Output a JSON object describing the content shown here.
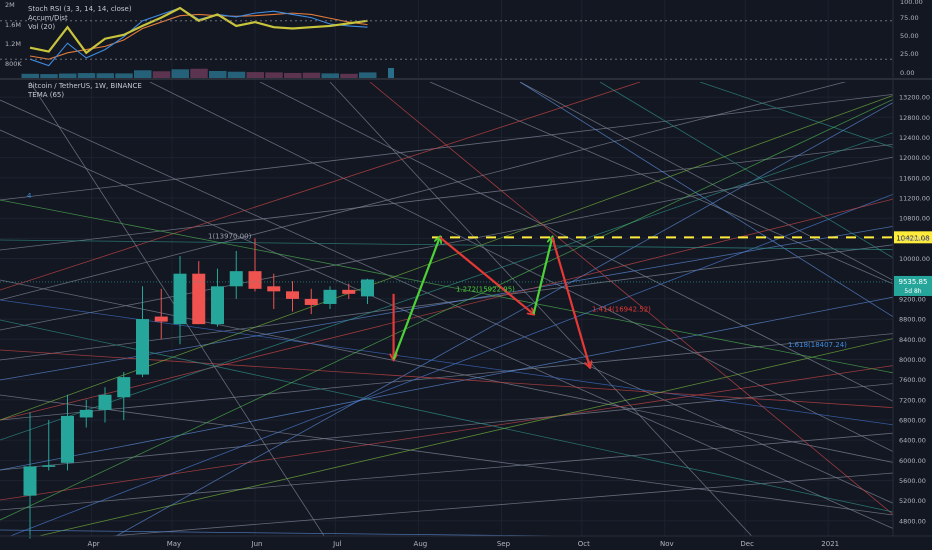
{
  "colors": {
    "background": "#131722",
    "bull": "#26a69a",
    "bear": "#ef5350",
    "target": "#ffeb3b",
    "arrow_up": "#4cd137",
    "arrow_down": "#e53935",
    "price_tag": "#26a69a"
  },
  "indicator_pane": {
    "studies": [
      "Stoch RSI (3, 3, 14, 14, close)",
      "Accum/Dist",
      "Vol (20)"
    ],
    "left_scale": [
      "2M",
      "1.6M",
      "1.2M",
      "800K"
    ],
    "right_scale": [
      "100.00",
      "75.00",
      "50.00",
      "25.00",
      "0.00"
    ]
  },
  "price_pane": {
    "symbol_title": "Bitcoin / TetherUS, 1W, BINANCE",
    "study": "TEMA (65)"
  },
  "chart_data": {
    "type": "candlestick",
    "x_labels": [
      "Apr",
      "May",
      "Jun",
      "Jul",
      "Aug",
      "Sep",
      "Oct",
      "Nov",
      "Dec",
      "2021"
    ],
    "y_ticks": [
      4800,
      5200,
      5600,
      6000,
      6400,
      6800,
      7200,
      7600,
      8000,
      8400,
      8800,
      9200,
      10000,
      10400,
      10800,
      11200,
      11600,
      12000,
      12400,
      12800,
      13200
    ],
    "ylim": [
      4500,
      13500
    ],
    "candles": [
      {
        "o": 5300,
        "h": 6950,
        "l": 4450,
        "c": 5880
      },
      {
        "o": 5880,
        "h": 6800,
        "l": 5800,
        "c": 5900
      },
      {
        "o": 5950,
        "h": 7300,
        "l": 5800,
        "c": 6880
      },
      {
        "o": 6850,
        "h": 7200,
        "l": 6650,
        "c": 7000
      },
      {
        "o": 7000,
        "h": 7450,
        "l": 6750,
        "c": 7300
      },
      {
        "o": 7250,
        "h": 7750,
        "l": 6800,
        "c": 7650
      },
      {
        "o": 7700,
        "h": 9450,
        "l": 7650,
        "c": 8800
      },
      {
        "o": 8850,
        "h": 9400,
        "l": 8400,
        "c": 8750
      },
      {
        "o": 8700,
        "h": 10050,
        "l": 8300,
        "c": 9700
      },
      {
        "o": 9700,
        "h": 9950,
        "l": 8700,
        "c": 8700
      },
      {
        "o": 8700,
        "h": 9800,
        "l": 8650,
        "c": 9450
      },
      {
        "o": 9450,
        "h": 10150,
        "l": 9200,
        "c": 9750
      },
      {
        "o": 9750,
        "h": 10400,
        "l": 9350,
        "c": 9400
      },
      {
        "o": 9450,
        "h": 9700,
        "l": 9000,
        "c": 9350
      },
      {
        "o": 9350,
        "h": 9550,
        "l": 8950,
        "c": 9200
      },
      {
        "o": 9200,
        "h": 9400,
        "l": 8900,
        "c": 9080
      },
      {
        "o": 9100,
        "h": 9450,
        "l": 9000,
        "c": 9380
      },
      {
        "o": 9380,
        "h": 9500,
        "l": 9200,
        "c": 9300
      },
      {
        "o": 9250,
        "h": 9600,
        "l": 9100,
        "c": 9585
      }
    ],
    "target_level": {
      "value": 10421.08,
      "label": "10421.08"
    },
    "current_price": {
      "value": 9535.85,
      "label": "9535.85",
      "countdown": "5d 8h"
    },
    "fib_labels": [
      {
        "text": "1(13970.00)",
        "price": 10400
      },
      {
        "text": "1.272(15922.95)",
        "price": 9350
      },
      {
        "text": "1.414(16942.52)",
        "price": 8950
      },
      {
        "text": "1.618(18407.24)",
        "price": 8250
      }
    ],
    "marker_label": "4",
    "projected_path": [
      {
        "from": {
          "x": "2020-07-19",
          "price": 9300
        },
        "to": {
          "x": "2020-07-19",
          "price": 8000
        },
        "direction": "down"
      },
      {
        "from": {
          "x": "2020-07-19",
          "price": 8000
        },
        "to": {
          "x": "2020-08-09",
          "price": 10421
        },
        "direction": "up"
      },
      {
        "from": {
          "x": "2020-08-09",
          "price": 10421
        },
        "to": {
          "x": "2020-09-13",
          "price": 8900
        },
        "direction": "down"
      },
      {
        "from": {
          "x": "2020-09-13",
          "price": 8900
        },
        "to": {
          "x": "2020-09-20",
          "price": 10421
        },
        "direction": "up"
      },
      {
        "from": {
          "x": "2020-09-20",
          "price": 10421
        },
        "to": {
          "x": "2020-10-04",
          "price": 7850
        },
        "direction": "down"
      }
    ],
    "volume_relative": [
      0.3,
      0.28,
      0.32,
      0.35,
      0.34,
      0.33,
      0.55,
      0.48,
      0.62,
      0.66,
      0.5,
      0.45,
      0.42,
      0.4,
      0.36,
      0.38,
      0.33,
      0.3,
      0.4
    ],
    "stoch_k": [
      20,
      10,
      45,
      22,
      35,
      55,
      80,
      90,
      100,
      82,
      90,
      86,
      92,
      95,
      90,
      85,
      75,
      72,
      70
    ],
    "stoch_d": [
      25,
      20,
      30,
      35,
      40,
      50,
      68,
      78,
      88,
      90,
      88,
      87,
      88,
      90,
      92,
      90,
      84,
      78,
      74
    ],
    "accum_dist": [
      38,
      32,
      70,
      30,
      52,
      58,
      72,
      85,
      100,
      80,
      90,
      72,
      78,
      70,
      68,
      70,
      72,
      76,
      80
    ]
  }
}
